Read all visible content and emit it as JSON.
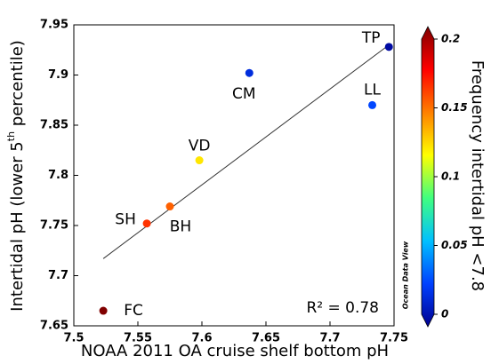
{
  "chart_data": {
    "type": "scatter",
    "xlabel": "NOAA 2011 OA cruise shelf bottom pH",
    "ylabel": [
      "Intertidal pH (lower 5",
      "th",
      " percentile)"
    ],
    "colorbar_label": "Frequency intertidal pH <7.8",
    "watermark": "Ocean Data View",
    "annotation": "R² = 0.78",
    "labels": [
      "TP",
      "CM",
      "LL",
      "VD",
      "BH",
      "SH",
      "FC"
    ],
    "x": [
      7.746,
      7.637,
      7.733,
      7.598,
      7.575,
      7.557,
      7.523
    ],
    "y": [
      7.928,
      7.902,
      7.87,
      7.815,
      7.769,
      7.752,
      7.665
    ],
    "color_values": [
      0.005,
      0.02,
      0.03,
      0.12,
      0.15,
      0.16,
      0.2
    ],
    "fit_line": {
      "x": [
        7.523,
        7.746
      ],
      "y": [
        7.717,
        7.93
      ]
    },
    "xlim": [
      7.5,
      7.75
    ],
    "xticks": [
      7.5,
      7.55,
      7.6,
      7.65,
      7.7,
      7.75
    ],
    "ylim": [
      7.65,
      7.95
    ],
    "yticks": [
      7.65,
      7.7,
      7.75,
      7.8,
      7.85,
      7.9,
      7.95
    ],
    "clim": [
      0,
      0.2
    ],
    "cticks": [
      0,
      0.05,
      0.1,
      0.15,
      0.2
    ],
    "colormap": [
      "#00008f",
      "#0040ff",
      "#00c0ff",
      "#40ff80",
      "#ffff00",
      "#ff8000",
      "#ff0000",
      "#800000"
    ],
    "line_color": "#333333"
  }
}
